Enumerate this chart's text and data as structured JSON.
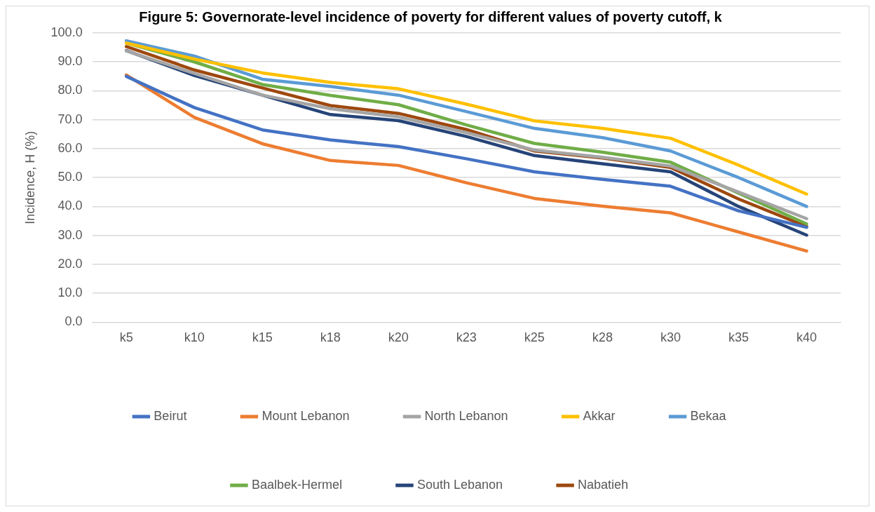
{
  "chart_data": {
    "type": "line",
    "title": "Figure 5: Governorate-level incidence of poverty for different values of poverty cutoff, k",
    "ylabel": "Incidence, H (%)",
    "categories": [
      "k5",
      "k10",
      "k15",
      "k18",
      "k20",
      "k23",
      "k25",
      "k28",
      "k30",
      "k35",
      "k40"
    ],
    "series": [
      {
        "name": "Beirut",
        "color": "#4472c4",
        "values": [
          85,
          74.2,
          66.5,
          63,
          60.7,
          56.5,
          52,
          49.4,
          47,
          38.5,
          32.8
        ]
      },
      {
        "name": "Mount Lebanon",
        "color": "#ed7d31",
        "values": [
          85.5,
          70.8,
          61.7,
          55.9,
          54.2,
          48.2,
          42.8,
          40.1,
          37.8,
          31.2,
          24.6
        ]
      },
      {
        "name": "North Lebanon",
        "color": "#a5a5a5",
        "values": [
          93.8,
          86,
          78.5,
          73.8,
          71,
          65.5,
          59.5,
          57,
          54,
          45,
          35.8
        ]
      },
      {
        "name": "Akkar",
        "color": "#ffc000",
        "values": [
          96.5,
          91,
          86.2,
          82.9,
          80.7,
          75.4,
          69.6,
          67,
          63.6,
          54.3,
          44.3
        ]
      },
      {
        "name": "Bekaa",
        "color": "#5b9bd5",
        "values": [
          97.3,
          92,
          84,
          81.5,
          78.5,
          72.8,
          67,
          63.8,
          59.2,
          50,
          40
        ]
      },
      {
        "name": "Baalbek-Hermel",
        "color": "#70ad47",
        "values": [
          96.5,
          90,
          82.2,
          78.4,
          75.2,
          68.2,
          61.8,
          58.8,
          55.3,
          44.6,
          34
        ]
      },
      {
        "name": "South Lebanon",
        "color": "#264478",
        "values": [
          93.9,
          85.3,
          78.5,
          71.8,
          69.7,
          64.2,
          57.6,
          54.8,
          52,
          40,
          30.1
        ]
      },
      {
        "name": "Nabatieh",
        "color": "#9e480e",
        "values": [
          95.3,
          87.2,
          81,
          74.9,
          72.2,
          66.6,
          59.2,
          56.8,
          53.5,
          42.6,
          33.1
        ]
      }
    ],
    "ylim": [
      0,
      100
    ],
    "yticks": [
      {
        "value": 0,
        "label": "0.0"
      },
      {
        "value": 10,
        "label": "10.0"
      },
      {
        "value": 20,
        "label": "20.0"
      },
      {
        "value": 30,
        "label": "30.0"
      },
      {
        "value": 40,
        "label": "40.0"
      },
      {
        "value": 50,
        "label": "50.0"
      },
      {
        "value": 60,
        "label": "60.0"
      },
      {
        "value": 70,
        "label": "70.0"
      },
      {
        "value": 80,
        "label": "80.0"
      },
      {
        "value": 90,
        "label": "90.0"
      },
      {
        "value": 100,
        "label": "100.0"
      }
    ],
    "grid": "y",
    "legend": "bottom",
    "marker": "none",
    "line_style": "solid"
  }
}
